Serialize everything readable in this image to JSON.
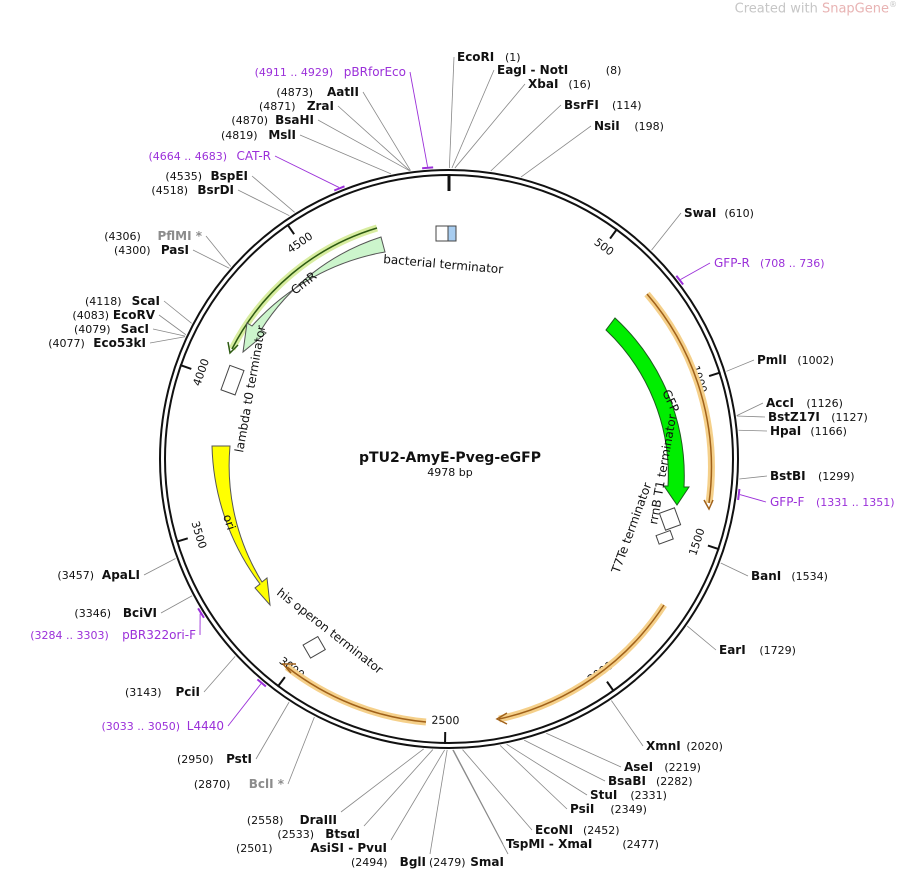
{
  "watermark": {
    "prefix": "Created with ",
    "brand": "SnapGene",
    "mark": "®"
  },
  "plasmid": {
    "name": "pTU2-AmyE-Pveg-eGFP",
    "length": "4978 bp",
    "total_bp": 4978
  },
  "colors": {
    "primer": "#9b30d9",
    "gfp": "#00ee00",
    "cmr": "#ccf5cc",
    "ori": "#ffff00",
    "orf": "#f5d08a",
    "terminator_fill": "#ffffff"
  },
  "ticks": [
    {
      "bp": 500,
      "label": "500"
    },
    {
      "bp": 1000,
      "label": "1000"
    },
    {
      "bp": 1500,
      "label": "1500"
    },
    {
      "bp": 2000,
      "label": "2000"
    },
    {
      "bp": 2500,
      "label": "2500"
    },
    {
      "bp": 3000,
      "label": "3000"
    },
    {
      "bp": 3500,
      "label": "3500"
    },
    {
      "bp": 4000,
      "label": "4000"
    },
    {
      "bp": 4500,
      "label": "4500"
    }
  ],
  "enzymes_right": [
    {
      "name": "EcoRI",
      "pos": "(1)",
      "bp": 1
    },
    {
      "name": "EagI  -  NotI",
      "pos": "(8)",
      "bp": 8
    },
    {
      "name": "XbaI",
      "pos": "(16)",
      "bp": 16
    },
    {
      "name": "BsrFI",
      "pos": "(114)",
      "bp": 114
    },
    {
      "name": "NsiI",
      "pos": "(198)",
      "bp": 198
    },
    {
      "name": "SwaI",
      "pos": "(610)",
      "bp": 610
    },
    {
      "name": "PmlI",
      "pos": "(1002)",
      "bp": 1002
    },
    {
      "name": "AccI",
      "pos": "(1126)",
      "bp": 1126
    },
    {
      "name": "BstZ17I",
      "pos": "(1127)",
      "bp": 1127
    },
    {
      "name": "HpaI",
      "pos": "(1166)",
      "bp": 1166
    },
    {
      "name": "BstBI",
      "pos": "(1299)",
      "bp": 1299
    },
    {
      "name": "BanI",
      "pos": "(1534)",
      "bp": 1534
    },
    {
      "name": "EarI",
      "pos": "(1729)",
      "bp": 1729
    },
    {
      "name": "XmnI",
      "pos": "(2020)",
      "bp": 2020
    },
    {
      "name": "AseI",
      "pos": "(2219)",
      "bp": 2219
    },
    {
      "name": "BsaBI",
      "pos": "(2282)",
      "bp": 2282
    },
    {
      "name": "StuI",
      "pos": "(2331)",
      "bp": 2331
    },
    {
      "name": "PsiI",
      "pos": "(2349)",
      "bp": 2349
    },
    {
      "name": "EcoNI",
      "pos": "(2452)",
      "bp": 2452
    },
    {
      "name": "TspMI  -  XmaI",
      "pos": "(2477)",
      "bp": 2477
    }
  ],
  "enzymes_left": [
    {
      "name": "SmaI",
      "pos": "(2479)",
      "bp": 2479
    },
    {
      "name": "BglI",
      "pos": "(2494)",
      "bp": 2494
    },
    {
      "name": "AsiSI  -  PvuI",
      "pos": "(2501)",
      "bp": 2501
    },
    {
      "name": "BtsαI",
      "pos": "(2533)",
      "bp": 2533
    },
    {
      "name": "DraIII",
      "pos": "(2558)",
      "bp": 2558
    },
    {
      "name": "BclI *",
      "pos": "(2870)",
      "bp": 2870,
      "gray": true
    },
    {
      "name": "PstI",
      "pos": "(2950)",
      "bp": 2950
    },
    {
      "name": "PciI",
      "pos": "(3143)",
      "bp": 3143
    },
    {
      "name": "BciVI",
      "pos": "(3346)",
      "bp": 3346
    },
    {
      "name": "ApaLI",
      "pos": "(3457)",
      "bp": 3457
    },
    {
      "name": "Eco53kI",
      "pos": "(4077)",
      "bp": 4077
    },
    {
      "name": "SacI",
      "pos": "(4079)",
      "bp": 4079
    },
    {
      "name": "EcoRV",
      "pos": "(4083)",
      "bp": 4083
    },
    {
      "name": "ScaI",
      "pos": "(4118)",
      "bp": 4118
    },
    {
      "name": "PasI",
      "pos": "(4300)",
      "bp": 4300
    },
    {
      "name": "PflMI *",
      "pos": "(4306)",
      "bp": 4306,
      "gray": true
    },
    {
      "name": "BsrDI",
      "pos": "(4518)",
      "bp": 4518
    },
    {
      "name": "BspEI",
      "pos": "(4535)",
      "bp": 4535
    },
    {
      "name": "MslI",
      "pos": "(4819)",
      "bp": 4819
    },
    {
      "name": "BsaHI",
      "pos": "(4870)",
      "bp": 4870
    },
    {
      "name": "ZraI",
      "pos": "(4871)",
      "bp": 4871
    },
    {
      "name": "AatII",
      "pos": "(4873)",
      "bp": 4873
    }
  ],
  "primers": [
    {
      "name": "pBRforEco",
      "range": "(4911 .. 4929)",
      "bp": 4920,
      "side": "left"
    },
    {
      "name": "CAT-R",
      "range": "(4664 .. 4683)",
      "bp": 4673,
      "side": "left"
    },
    {
      "name": "GFP-R",
      "range": "(708 .. 736)",
      "bp": 722,
      "side": "right"
    },
    {
      "name": "GFP-F",
      "range": "(1331 .. 1351)",
      "bp": 1341,
      "side": "right"
    },
    {
      "name": "pBR322ori-F",
      "range": "(3284 .. 3303)",
      "bp": 3293,
      "side": "left"
    },
    {
      "name": "L4440",
      "range": "(3033 .. 3050)",
      "bp": 3041,
      "side": "left"
    }
  ],
  "features": {
    "gfp": "GFP",
    "cmr": "CmR",
    "ori": "ori",
    "bacterial_terminator": "bacterial terminator",
    "lambda_terminator": "lambda t0 terminator",
    "rrnb_terminator": "rrnB T1 terminator",
    "t7te_terminator": "T7Te terminator",
    "his_terminator": "his operon terminator"
  }
}
